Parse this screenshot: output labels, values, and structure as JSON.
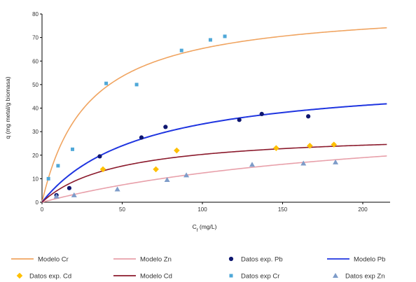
{
  "chart_data": {
    "type": "scatter",
    "xlabel": "Cf (mg/L)",
    "xlabel_main": "C",
    "xlabel_sub": "f",
    "xlabel_rest": " (mg/L)",
    "ylabel": "q (mg metal/g biomasa)",
    "xlim": [
      0,
      215
    ],
    "ylim": [
      0,
      80
    ],
    "x_ticks": [
      0,
      50,
      100,
      150,
      200
    ],
    "y_ticks": [
      0,
      10,
      20,
      30,
      40,
      50,
      60,
      70,
      80
    ],
    "grid": false,
    "legend_position": "bottom",
    "models": [
      {
        "name": "Modelo Cr",
        "type": "langmuir",
        "qmax": 84,
        "b": 0.035,
        "color": "#F0A460"
      },
      {
        "name": "Modelo Zn",
        "type": "langmuir",
        "qmax": 40,
        "b": 0.0045,
        "color": "#E8A0AA"
      },
      {
        "name": "Modelo Pb",
        "type": "langmuir",
        "qmax": 54,
        "b": 0.016,
        "color": "#1F35E0"
      },
      {
        "name": "Modelo Cd",
        "type": "langmuir",
        "qmax": 30,
        "b": 0.021,
        "color": "#8B1A2C"
      }
    ],
    "series": [
      {
        "name": "Datos exp. Pb",
        "marker": "circle",
        "color": "#0F1770",
        "points": [
          [
            9,
            3
          ],
          [
            17,
            6
          ],
          [
            36,
            19.5
          ],
          [
            62,
            27.5
          ],
          [
            77,
            32
          ],
          [
            123,
            35
          ],
          [
            137,
            37.5
          ],
          [
            166,
            36.5
          ]
        ]
      },
      {
        "name": "Datos exp. Cd",
        "marker": "diamond",
        "color": "#FFC000",
        "points": [
          [
            38,
            14
          ],
          [
            71,
            14
          ],
          [
            84,
            22
          ],
          [
            146,
            23
          ],
          [
            167,
            24
          ],
          [
            182,
            24.5
          ]
        ]
      },
      {
        "name": "Datos exp Cr",
        "marker": "square",
        "color": "#4FA8D8",
        "points": [
          [
            4,
            10
          ],
          [
            10,
            15.5
          ],
          [
            19,
            22.5
          ],
          [
            40,
            50.5
          ],
          [
            59,
            50
          ],
          [
            87,
            64.5
          ],
          [
            105,
            69
          ],
          [
            114,
            70.5
          ]
        ]
      },
      {
        "name": "Datos exp Zn",
        "marker": "triangle",
        "color": "#7E9CC9",
        "points": [
          [
            9,
            2.5
          ],
          [
            20,
            3
          ],
          [
            47,
            5.5
          ],
          [
            78,
            9.5
          ],
          [
            90,
            11.5
          ],
          [
            131,
            16
          ],
          [
            163,
            16.5
          ],
          [
            183,
            17
          ]
        ]
      }
    ]
  },
  "legend": {
    "rows": [
      [
        {
          "label": "Modelo Cr",
          "kind": "line",
          "color": "#F0A460"
        },
        {
          "label": "Modelo Zn",
          "kind": "line",
          "color": "#E8A0AA"
        },
        {
          "label": "Datos exp. Pb",
          "kind": "circle",
          "color": "#0F1770"
        },
        {
          "label": "Modelo Pb",
          "kind": "line",
          "color": "#1F35E0"
        }
      ],
      [
        {
          "label": "Datos exp. Cd",
          "kind": "diamond",
          "color": "#FFC000"
        },
        {
          "label": "Modelo Cd",
          "kind": "line",
          "color": "#8B1A2C"
        },
        {
          "label": "Datos exp Cr",
          "kind": "square",
          "color": "#4FA8D8"
        },
        {
          "label": "Datos exp Zn",
          "kind": "triangle",
          "color": "#7E9CC9"
        }
      ]
    ]
  }
}
